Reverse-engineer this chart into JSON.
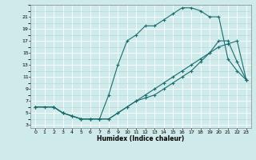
{
  "xlabel": "Humidex (Indice chaleur)",
  "bg_color": "#ceeaea",
  "grid_color": "#b0d0d0",
  "line_color": "#1a6e6e",
  "xlim": [
    -0.5,
    23.5
  ],
  "ylim": [
    2.5,
    23
  ],
  "xticks": [
    0,
    1,
    2,
    3,
    4,
    5,
    6,
    7,
    8,
    9,
    10,
    11,
    12,
    13,
    14,
    15,
    16,
    17,
    18,
    19,
    20,
    21,
    22,
    23
  ],
  "yticks": [
    3,
    5,
    7,
    9,
    11,
    13,
    15,
    17,
    19,
    21
  ],
  "line1_x": [
    0,
    1,
    2,
    3,
    4,
    5,
    6,
    7,
    8,
    9,
    10,
    11,
    12,
    13,
    14,
    15,
    16,
    17,
    18,
    19,
    20,
    21,
    22,
    23
  ],
  "line1_y": [
    6,
    6,
    6,
    5,
    4.5,
    4,
    4,
    4,
    4,
    5,
    6,
    7,
    8,
    9,
    10,
    11,
    12,
    13,
    14,
    15,
    16,
    16.5,
    17,
    10.5
  ],
  "line2_x": [
    0,
    2,
    3,
    4,
    5,
    6,
    7,
    8,
    9,
    10,
    11,
    12,
    13,
    14,
    15,
    16,
    17,
    18,
    19,
    20,
    21,
    22,
    23
  ],
  "line2_y": [
    6,
    6,
    5,
    4.5,
    4,
    4,
    4,
    8,
    13,
    17,
    18,
    19.5,
    19.5,
    20.5,
    21.5,
    22.5,
    22.5,
    22,
    21,
    21,
    14,
    12,
    10.5
  ],
  "line3_x": [
    0,
    2,
    3,
    4,
    5,
    6,
    7,
    8,
    9,
    10,
    11,
    12,
    13,
    14,
    15,
    16,
    17,
    18,
    19,
    20,
    21,
    22,
    23
  ],
  "line3_y": [
    6,
    6,
    5,
    4.5,
    4,
    4,
    4,
    4,
    5,
    6,
    7,
    7.5,
    8,
    9,
    10,
    11,
    12,
    13.5,
    15,
    17,
    17,
    13.5,
    10.5
  ]
}
